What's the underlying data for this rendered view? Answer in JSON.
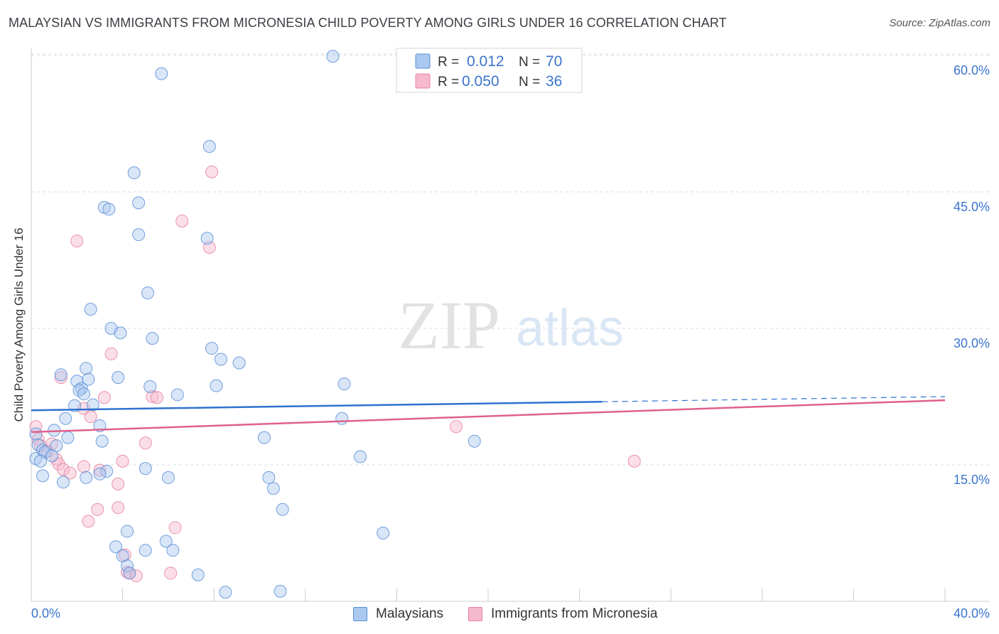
{
  "title": "MALAYSIAN VS IMMIGRANTS FROM MICRONESIA CHILD POVERTY AMONG GIRLS UNDER 16 CORRELATION CHART",
  "source": "Source: ZipAtlas.com",
  "watermark": {
    "zip": "ZIP",
    "atlas": "atlas"
  },
  "colors": {
    "malaysians_fill": "#aac8f0",
    "malaysians_stroke": "#5b8fd6",
    "malaysians_line": "#2f72d0",
    "micronesia_fill": "#f6b8cc",
    "micronesia_stroke": "#e8829f",
    "micronesia_line": "#e0608c",
    "value_text": "#3b74cc",
    "grid": "#d8dce4"
  },
  "legend": {
    "rows": [
      {
        "r_label": "R =",
        "r_value": "0.012",
        "n_label": "N =",
        "n_value": "70"
      },
      {
        "r_label": "R =",
        "r_value": "0.050",
        "n_label": "N =",
        "n_value": "36"
      }
    ]
  },
  "chart_data": {
    "type": "scatter",
    "xlabel": "",
    "ylabel": "Child Poverty Among Girls Under 16",
    "xlim": [
      0,
      40
    ],
    "ylim": [
      0,
      60
    ],
    "x_tick_labels": [
      "0.0%",
      "40.0%"
    ],
    "y_ticks": [
      15,
      30,
      45,
      60
    ],
    "y_tick_labels": [
      "15.0%",
      "30.0%",
      "45.0%",
      "60.0%"
    ],
    "grid": true,
    "legend_position": "top-center",
    "series": [
      {
        "name": "Malaysians",
        "points": [
          [
            13.2,
            59.9
          ],
          [
            5.7,
            58.0
          ],
          [
            7.8,
            50.0
          ],
          [
            4.5,
            47.1
          ],
          [
            4.7,
            43.8
          ],
          [
            3.2,
            43.3
          ],
          [
            3.4,
            43.1
          ],
          [
            4.7,
            40.3
          ],
          [
            7.7,
            39.9
          ],
          [
            5.1,
            33.9
          ],
          [
            2.6,
            32.1
          ],
          [
            3.5,
            30.0
          ],
          [
            3.9,
            29.5
          ],
          [
            5.3,
            28.9
          ],
          [
            7.9,
            27.8
          ],
          [
            8.3,
            26.6
          ],
          [
            9.1,
            26.2
          ],
          [
            2.4,
            25.6
          ],
          [
            1.3,
            24.9
          ],
          [
            3.8,
            24.6
          ],
          [
            2.5,
            24.4
          ],
          [
            2.0,
            24.2
          ],
          [
            2.2,
            23.4
          ],
          [
            5.2,
            23.6
          ],
          [
            8.1,
            23.7
          ],
          [
            13.7,
            23.9
          ],
          [
            2.1,
            23.2
          ],
          [
            2.3,
            22.8
          ],
          [
            6.4,
            22.7
          ],
          [
            2.7,
            21.6
          ],
          [
            1.9,
            21.5
          ],
          [
            1.5,
            20.1
          ],
          [
            13.6,
            20.1
          ],
          [
            3.0,
            19.3
          ],
          [
            1.0,
            18.8
          ],
          [
            0.2,
            18.4
          ],
          [
            1.6,
            18.0
          ],
          [
            10.2,
            18.0
          ],
          [
            19.4,
            17.6
          ],
          [
            0.3,
            17.2
          ],
          [
            1.1,
            17.1
          ],
          [
            3.1,
            17.6
          ],
          [
            0.5,
            16.6
          ],
          [
            0.6,
            16.4
          ],
          [
            0.9,
            16.0
          ],
          [
            14.4,
            15.9
          ],
          [
            0.2,
            15.7
          ],
          [
            0.4,
            15.4
          ],
          [
            5.0,
            14.6
          ],
          [
            3.3,
            14.3
          ],
          [
            3.0,
            14.0
          ],
          [
            0.5,
            13.8
          ],
          [
            2.4,
            13.6
          ],
          [
            6.0,
            13.6
          ],
          [
            10.4,
            13.6
          ],
          [
            1.4,
            13.1
          ],
          [
            10.6,
            12.4
          ],
          [
            11.0,
            10.1
          ],
          [
            4.2,
            7.7
          ],
          [
            15.4,
            7.5
          ],
          [
            5.9,
            6.6
          ],
          [
            3.7,
            6.0
          ],
          [
            6.2,
            5.6
          ],
          [
            5.0,
            5.6
          ],
          [
            4.0,
            5.0
          ],
          [
            4.2,
            3.9
          ],
          [
            4.3,
            3.1
          ],
          [
            7.3,
            2.9
          ],
          [
            8.5,
            1.0
          ],
          [
            10.9,
            1.1
          ]
        ]
      },
      {
        "name": "Immigrants from Micronesia",
        "points": [
          [
            7.9,
            47.2
          ],
          [
            6.6,
            41.8
          ],
          [
            2.0,
            39.6
          ],
          [
            7.8,
            38.9
          ],
          [
            3.5,
            27.2
          ],
          [
            1.3,
            24.6
          ],
          [
            3.2,
            22.4
          ],
          [
            5.3,
            22.5
          ],
          [
            5.5,
            22.4
          ],
          [
            2.3,
            21.2
          ],
          [
            2.6,
            20.3
          ],
          [
            0.2,
            19.2
          ],
          [
            18.6,
            19.2
          ],
          [
            0.3,
            17.8
          ],
          [
            0.9,
            17.3
          ],
          [
            0.4,
            17.1
          ],
          [
            5.0,
            17.4
          ],
          [
            0.7,
            16.5
          ],
          [
            1.1,
            15.6
          ],
          [
            1.2,
            15.1
          ],
          [
            4.0,
            15.4
          ],
          [
            26.4,
            15.4
          ],
          [
            1.4,
            14.5
          ],
          [
            2.3,
            14.8
          ],
          [
            3.0,
            14.4
          ],
          [
            1.7,
            14.1
          ],
          [
            3.8,
            12.9
          ],
          [
            2.9,
            10.1
          ],
          [
            3.8,
            10.3
          ],
          [
            2.5,
            8.8
          ],
          [
            6.3,
            8.1
          ],
          [
            4.1,
            5.1
          ],
          [
            4.2,
            3.2
          ],
          [
            4.3,
            3.1
          ],
          [
            4.6,
            2.8
          ],
          [
            6.1,
            3.1
          ]
        ]
      }
    ],
    "trend_lines": [
      {
        "series": "Malaysians",
        "solid_x": [
          0,
          25
        ],
        "dashed_x": [
          25,
          40
        ],
        "y_start": 21.0,
        "y_end": 22.5
      },
      {
        "series": "Immigrants from Micronesia",
        "solid_x": [
          0,
          40
        ],
        "y_start": 18.6,
        "y_end": 22.1
      }
    ]
  }
}
